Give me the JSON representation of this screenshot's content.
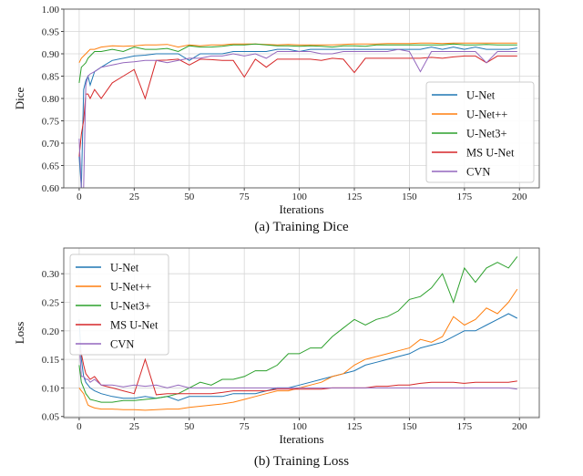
{
  "chart_data": [
    {
      "type": "line",
      "caption": "(a) Training Dice",
      "xlabel": "Iterations",
      "ylabel": "Dice",
      "xlim": [
        -7,
        209
      ],
      "ylim": [
        0.6,
        1.0
      ],
      "xticks": [
        0,
        25,
        50,
        75,
        100,
        125,
        150,
        175,
        200
      ],
      "yticks": [
        0.6,
        0.65,
        0.7,
        0.75,
        0.8,
        0.85,
        0.9,
        0.95,
        1.0
      ],
      "ytick_labels": [
        "0.60",
        "0.65",
        "0.70",
        "0.75",
        "0.80",
        "0.85",
        "0.90",
        "0.95",
        "1.00"
      ],
      "grid": true,
      "legend_position": "lower-right",
      "x": [
        0,
        1,
        2,
        3,
        4,
        5,
        7,
        10,
        15,
        20,
        25,
        30,
        35,
        40,
        45,
        50,
        55,
        60,
        65,
        70,
        75,
        80,
        85,
        90,
        95,
        100,
        105,
        110,
        115,
        120,
        125,
        130,
        135,
        140,
        145,
        150,
        155,
        160,
        165,
        170,
        175,
        180,
        185,
        190,
        195,
        199
      ],
      "series": [
        {
          "name": "U-Net",
          "color": "#1f77b4",
          "values": [
            0.67,
            0.6,
            0.82,
            0.84,
            0.85,
            0.83,
            0.86,
            0.87,
            0.885,
            0.89,
            0.895,
            0.897,
            0.9,
            0.9,
            0.9,
            0.885,
            0.9,
            0.9,
            0.9,
            0.905,
            0.905,
            0.905,
            0.905,
            0.91,
            0.91,
            0.905,
            0.91,
            0.91,
            0.91,
            0.91,
            0.91,
            0.91,
            0.91,
            0.91,
            0.91,
            0.91,
            0.91,
            0.915,
            0.91,
            0.915,
            0.91,
            0.915,
            0.91,
            0.91,
            0.91,
            0.913
          ]
        },
        {
          "name": "U-Net++",
          "color": "#ff7f0e",
          "values": [
            0.88,
            0.89,
            0.895,
            0.9,
            0.905,
            0.91,
            0.91,
            0.915,
            0.918,
            0.917,
            0.918,
            0.92,
            0.92,
            0.921,
            0.915,
            0.92,
            0.918,
            0.92,
            0.92,
            0.922,
            0.922,
            0.922,
            0.921,
            0.92,
            0.921,
            0.92,
            0.92,
            0.92,
            0.92,
            0.921,
            0.922,
            0.922,
            0.922,
            0.923,
            0.923,
            0.923,
            0.924,
            0.924,
            0.923,
            0.924,
            0.924,
            0.924,
            0.924,
            0.924,
            0.924,
            0.924
          ]
        },
        {
          "name": "U-Net3+",
          "color": "#2ca02c",
          "values": [
            0.835,
            0.87,
            0.875,
            0.88,
            0.89,
            0.895,
            0.905,
            0.905,
            0.91,
            0.905,
            0.915,
            0.91,
            0.91,
            0.912,
            0.905,
            0.918,
            0.915,
            0.915,
            0.917,
            0.92,
            0.92,
            0.922,
            0.92,
            0.918,
            0.918,
            0.917,
            0.918,
            0.917,
            0.915,
            0.918,
            0.918,
            0.917,
            0.92,
            0.92,
            0.92,
            0.92,
            0.92,
            0.92,
            0.92,
            0.922,
            0.92,
            0.92,
            0.921,
            0.92,
            0.92,
            0.92
          ]
        },
        {
          "name": "MS U-Net",
          "color": "#d62728",
          "values": [
            0.67,
            0.72,
            0.75,
            0.81,
            0.81,
            0.8,
            0.82,
            0.8,
            0.835,
            0.85,
            0.865,
            0.8,
            0.885,
            0.886,
            0.888,
            0.875,
            0.888,
            0.887,
            0.885,
            0.885,
            0.848,
            0.888,
            0.87,
            0.888,
            0.888,
            0.888,
            0.888,
            0.885,
            0.89,
            0.888,
            0.858,
            0.89,
            0.89,
            0.89,
            0.89,
            0.89,
            0.89,
            0.892,
            0.89,
            0.893,
            0.895,
            0.895,
            0.88,
            0.895,
            0.895,
            0.895
          ]
        },
        {
          "name": "CVN",
          "color": "#9467bd",
          "values": [
            0.71,
            0.6,
            0.6,
            0.83,
            0.85,
            0.855,
            0.86,
            0.87,
            0.875,
            0.88,
            0.882,
            0.885,
            0.885,
            0.88,
            0.885,
            0.89,
            0.89,
            0.895,
            0.895,
            0.9,
            0.895,
            0.9,
            0.89,
            0.905,
            0.905,
            0.905,
            0.905,
            0.9,
            0.9,
            0.905,
            0.905,
            0.905,
            0.905,
            0.905,
            0.91,
            0.905,
            0.86,
            0.905,
            0.905,
            0.905,
            0.905,
            0.905,
            0.88,
            0.905,
            0.905,
            0.905
          ]
        }
      ]
    },
    {
      "type": "line",
      "caption": "(b) Training Loss",
      "xlabel": "Iterations",
      "ylabel": "Loss",
      "xlim": [
        -7,
        209
      ],
      "ylim": [
        0.048,
        0.345
      ],
      "xticks": [
        0,
        25,
        50,
        75,
        100,
        125,
        150,
        175,
        200
      ],
      "yticks": [
        0.05,
        0.1,
        0.15,
        0.2,
        0.25,
        0.3
      ],
      "ytick_labels": [
        "0.05",
        "0.10",
        "0.15",
        "0.20",
        "0.25",
        "0.30"
      ],
      "grid": true,
      "legend_position": "upper-left",
      "x": [
        0,
        1,
        2,
        3,
        4,
        5,
        7,
        10,
        15,
        20,
        25,
        30,
        35,
        40,
        45,
        50,
        55,
        60,
        65,
        70,
        75,
        80,
        85,
        90,
        95,
        100,
        105,
        110,
        115,
        120,
        125,
        130,
        135,
        140,
        145,
        150,
        155,
        160,
        165,
        170,
        175,
        180,
        185,
        190,
        195,
        199
      ],
      "series": [
        {
          "name": "U-Net",
          "color": "#1f77b4",
          "values": [
            0.22,
            0.15,
            0.12,
            0.11,
            0.105,
            0.1,
            0.095,
            0.09,
            0.085,
            0.082,
            0.082,
            0.085,
            0.082,
            0.085,
            0.078,
            0.085,
            0.085,
            0.085,
            0.085,
            0.09,
            0.09,
            0.09,
            0.095,
            0.1,
            0.1,
            0.105,
            0.11,
            0.115,
            0.12,
            0.125,
            0.13,
            0.14,
            0.145,
            0.15,
            0.155,
            0.16,
            0.17,
            0.175,
            0.18,
            0.19,
            0.2,
            0.2,
            0.21,
            0.22,
            0.23,
            0.222
          ]
        },
        {
          "name": "U-Net++",
          "color": "#ff7f0e",
          "values": [
            0.1,
            0.095,
            0.09,
            0.08,
            0.07,
            0.068,
            0.065,
            0.063,
            0.063,
            0.062,
            0.062,
            0.061,
            0.062,
            0.063,
            0.063,
            0.066,
            0.068,
            0.07,
            0.072,
            0.075,
            0.08,
            0.085,
            0.09,
            0.095,
            0.095,
            0.1,
            0.105,
            0.11,
            0.12,
            0.125,
            0.14,
            0.15,
            0.155,
            0.16,
            0.165,
            0.17,
            0.185,
            0.18,
            0.19,
            0.225,
            0.21,
            0.22,
            0.24,
            0.23,
            0.25,
            0.273
          ]
        },
        {
          "name": "U-Net3+",
          "color": "#2ca02c",
          "values": [
            0.14,
            0.11,
            0.1,
            0.09,
            0.085,
            0.08,
            0.078,
            0.075,
            0.075,
            0.078,
            0.078,
            0.08,
            0.082,
            0.085,
            0.09,
            0.1,
            0.11,
            0.105,
            0.115,
            0.115,
            0.12,
            0.13,
            0.13,
            0.14,
            0.16,
            0.16,
            0.17,
            0.17,
            0.19,
            0.205,
            0.22,
            0.21,
            0.22,
            0.225,
            0.235,
            0.255,
            0.26,
            0.275,
            0.3,
            0.25,
            0.31,
            0.285,
            0.31,
            0.32,
            0.31,
            0.33
          ]
        },
        {
          "name": "MS U-Net",
          "color": "#d62728",
          "values": [
            0.17,
            0.16,
            0.14,
            0.125,
            0.12,
            0.115,
            0.12,
            0.105,
            0.1,
            0.095,
            0.09,
            0.15,
            0.088,
            0.09,
            0.09,
            0.09,
            0.09,
            0.09,
            0.092,
            0.095,
            0.095,
            0.095,
            0.095,
            0.098,
            0.098,
            0.098,
            0.098,
            0.098,
            0.1,
            0.1,
            0.1,
            0.1,
            0.103,
            0.103,
            0.105,
            0.105,
            0.108,
            0.11,
            0.11,
            0.11,
            0.108,
            0.11,
            0.11,
            0.11,
            0.11,
            0.112
          ]
        },
        {
          "name": "CVN",
          "color": "#9467bd",
          "values": [
            0.18,
            0.12,
            0.12,
            0.115,
            0.115,
            0.11,
            0.115,
            0.105,
            0.105,
            0.102,
            0.105,
            0.103,
            0.105,
            0.1,
            0.105,
            0.1,
            0.1,
            0.1,
            0.1,
            0.1,
            0.1,
            0.1,
            0.1,
            0.1,
            0.1,
            0.1,
            0.1,
            0.1,
            0.1,
            0.1,
            0.1,
            0.1,
            0.1,
            0.1,
            0.1,
            0.1,
            0.1,
            0.1,
            0.1,
            0.1,
            0.1,
            0.1,
            0.1,
            0.1,
            0.1,
            0.098
          ]
        }
      ]
    }
  ]
}
